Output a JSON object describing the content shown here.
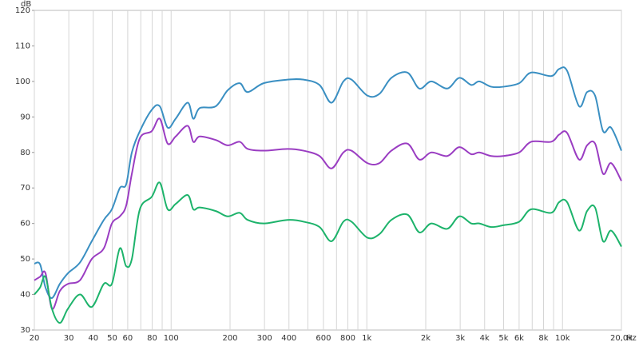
{
  "chart_data": {
    "type": "line",
    "y_unit": "dB",
    "x_unit": "Hz",
    "x_scale": "log",
    "grid": "x",
    "xlim": [
      20,
      20000
    ],
    "ylim": [
      30,
      120
    ],
    "xticks": [
      20,
      30,
      40,
      50,
      60,
      80,
      100,
      200,
      300,
      400,
      600,
      800,
      {
        "value": 1000,
        "label": "1k"
      },
      {
        "value": 2000,
        "label": "2k"
      },
      {
        "value": 3000,
        "label": "3k"
      },
      {
        "value": 4000,
        "label": "4k"
      },
      {
        "value": 5000,
        "label": "5k"
      },
      {
        "value": 6000,
        "label": "6k"
      },
      {
        "value": 8000,
        "label": "8k"
      },
      {
        "value": 10000,
        "label": "10k"
      },
      {
        "value": 20000,
        "label": "20,0k"
      }
    ],
    "x_minor_ticks": [
      70,
      90,
      500,
      700,
      900,
      7000,
      9000
    ],
    "yticks": [
      30,
      40,
      50,
      60,
      70,
      80,
      90,
      100,
      110,
      120
    ],
    "x": [
      20,
      21.4,
      22.8,
      24.6,
      27,
      29.7,
      34.2,
      39.3,
      45.3,
      49.8,
      54.7,
      58.9,
      63,
      69.2,
      79.6,
      87.5,
      96,
      105.5,
      121.5,
      129.8,
      140,
      169,
      194.5,
      224,
      246,
      297,
      393,
      475,
      573,
      660,
      759,
      835,
      1007,
      1160,
      1335,
      1611,
      1855,
      2136,
      2578,
      2968,
      3418,
      3754,
      4322,
      4978,
      6008,
      6916,
      8746,
      9608,
      10554,
      12152,
      13352,
      14666,
      16112,
      17702,
      20000
    ],
    "series": [
      {
        "color": "#3a8fc2",
        "values": [
          48.7,
          48.5,
          42,
          39,
          43,
          46,
          49,
          55,
          61,
          64,
          70,
          71,
          80,
          86,
          92,
          93,
          87,
          89.5,
          94,
          89.5,
          92.5,
          93,
          97.5,
          99.5,
          97,
          99.5,
          100.5,
          100.5,
          99,
          94,
          100,
          100.5,
          96,
          96.5,
          101,
          102.5,
          98,
          100,
          98,
          101,
          99,
          100,
          98.5,
          98.5,
          99.5,
          102.5,
          101.5,
          103.5,
          103,
          93,
          97,
          96,
          86,
          87,
          80.5
        ]
      },
      {
        "color": "#9a3dc2",
        "values": [
          44,
          45,
          46,
          36,
          41,
          43,
          44,
          50,
          53,
          60,
          62,
          65,
          74,
          84,
          86,
          89.5,
          82.5,
          84.5,
          87.5,
          83,
          84.5,
          83.5,
          82,
          83,
          81,
          80.5,
          81,
          80.5,
          79,
          75.5,
          80,
          80.5,
          77,
          77,
          80.5,
          82.5,
          78,
          80,
          79,
          81.5,
          79.5,
          80,
          79,
          79,
          80,
          83,
          83,
          85,
          85.5,
          78,
          82,
          82.5,
          74,
          77,
          72
        ]
      },
      {
        "color": "#1db36b",
        "values": [
          40,
          42,
          45,
          36,
          32,
          36,
          40,
          36.5,
          43,
          43,
          53,
          48,
          50,
          64,
          67.5,
          71.5,
          64,
          65.5,
          68,
          64,
          64.5,
          63.5,
          62,
          63,
          61,
          60,
          61,
          60.5,
          59,
          55,
          60.5,
          60.5,
          56,
          57,
          61,
          62.5,
          57.5,
          60,
          58.5,
          62,
          60,
          60,
          59,
          59.5,
          60.5,
          64,
          63,
          66,
          66,
          58,
          63.5,
          64.5,
          55,
          58,
          53.5
        ]
      }
    ]
  }
}
